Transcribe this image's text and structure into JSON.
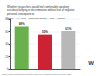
{
  "chart_data": {
    "type": "bar",
    "title": "Whether researchers would feel comfortable speaking\nout about bullying or discrimination without fear of negative\npersonal consequences",
    "subtitle": "Green = All  |  Red = underrepresented  |  Gray = Majority",
    "annotations": [
      "Source: Walden University/Surveymonkey online survey data taken from surveys run in 2020",
      "W"
    ],
    "categories": [
      null,
      null,
      null
    ],
    "values": [
      68,
      55,
      61
    ],
    "value_labels": [
      "68%",
      "55%",
      "61%"
    ],
    "colors": [
      "#6ab04c",
      "#cc2233",
      "#b8b8b8"
    ],
    "data_labels": true,
    "ylim": [
      0,
      80
    ],
    "yticks": [
      0,
      20,
      40,
      60,
      80
    ],
    "grid": true,
    "tick_labels": "y"
  }
}
